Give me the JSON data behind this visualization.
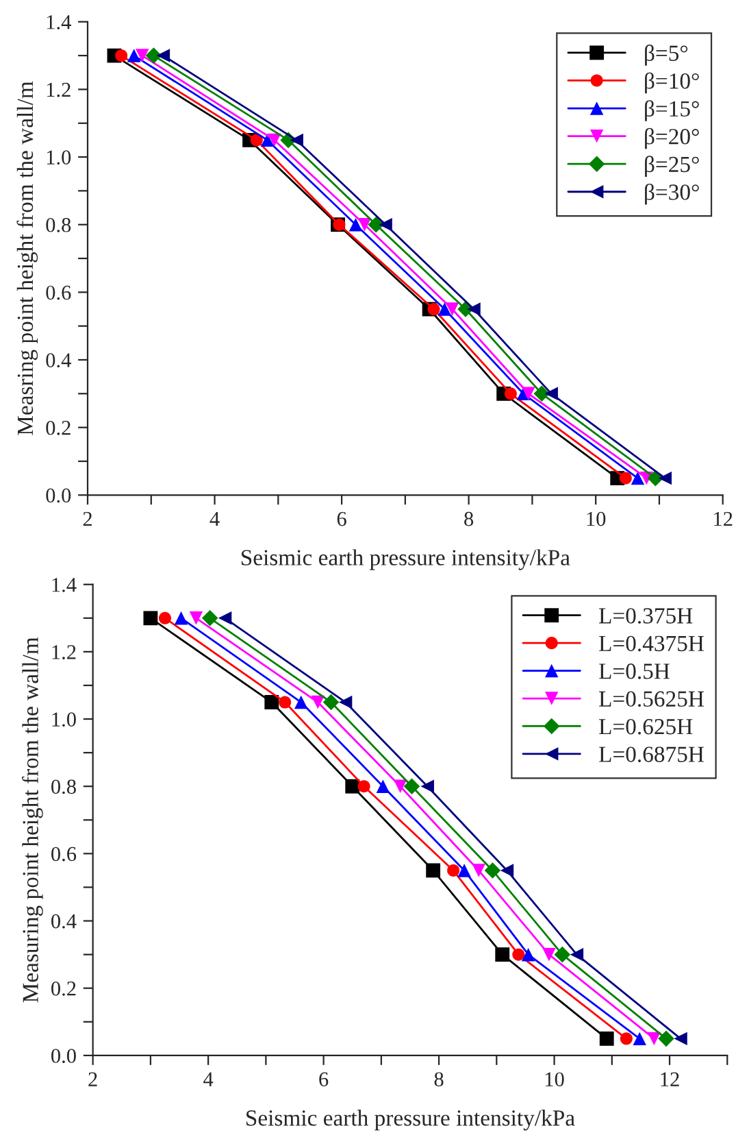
{
  "chart_data": [
    {
      "type": "line",
      "xlabel": "Seismic earth pressure intensity/kPa",
      "ylabel": "Measring point height from the wall/m",
      "legend": "top right",
      "grid": false,
      "xlim": [
        2,
        12
      ],
      "xticks": [
        2,
        {
          "value": 3,
          "label": null
        },
        4,
        {
          "value": 5,
          "label": null
        },
        6,
        {
          "value": 7,
          "label": null
        },
        8,
        {
          "value": 9,
          "label": null
        },
        10,
        {
          "value": 11,
          "label": null
        },
        12
      ],
      "ylim": [
        0,
        1.4
      ],
      "yticks": [
        "0.0",
        {
          "value": 0.1,
          "label": null
        },
        {
          "value": 0.2,
          "label": "0.2"
        },
        {
          "value": 0.3,
          "label": null
        },
        {
          "value": 0.4,
          "label": "0.4"
        },
        {
          "value": 0.5,
          "label": null
        },
        {
          "value": 0.6,
          "label": "0.6"
        },
        {
          "value": 0.7,
          "label": null
        },
        {
          "value": 0.8,
          "label": "0.8"
        },
        {
          "value": 0.9,
          "label": null
        },
        {
          "value": 1.0,
          "label": "1.0"
        },
        {
          "value": 1.1,
          "label": null
        },
        {
          "value": 1.2,
          "label": "1.2"
        },
        {
          "value": 1.3,
          "label": null
        },
        {
          "value": 1.4,
          "label": "1.4"
        }
      ],
      "series": [
        {
          "name": "β=5°",
          "color": "#000000",
          "marker": "square",
          "x": [
            2.42,
            4.55,
            5.94,
            7.38,
            8.55,
            10.34
          ],
          "values": [
            1.3,
            1.05,
            0.8,
            0.55,
            0.3,
            0.05
          ]
        },
        {
          "name": "β=10°",
          "color": "#ff0000",
          "marker": "circle",
          "x": [
            2.53,
            4.66,
            5.96,
            7.45,
            8.66,
            10.47
          ],
          "values": [
            1.3,
            1.05,
            0.8,
            0.55,
            0.3,
            0.05
          ]
        },
        {
          "name": "β=15°",
          "color": "#0000ff",
          "marker": "triangle",
          "x": [
            2.73,
            4.83,
            6.22,
            7.62,
            8.86,
            10.66
          ],
          "values": [
            1.3,
            1.05,
            0.8,
            0.55,
            0.3,
            0.05
          ]
        },
        {
          "name": "β=20°",
          "color": "#ff00ff",
          "marker": "triangle_down",
          "x": [
            2.86,
            4.94,
            6.36,
            7.74,
            8.94,
            10.8
          ],
          "values": [
            1.3,
            1.05,
            0.8,
            0.55,
            0.3,
            0.05
          ]
        },
        {
          "name": "β=25°",
          "color": "#008000",
          "marker": "diamond",
          "x": [
            3.04,
            5.16,
            6.54,
            7.95,
            9.15,
            10.94
          ],
          "values": [
            1.3,
            1.05,
            0.8,
            0.55,
            0.3,
            0.05
          ]
        },
        {
          "name": "β=30°",
          "color": "#000080",
          "marker": "triangle_left",
          "x": [
            3.19,
            5.29,
            6.69,
            8.08,
            9.3,
            11.09
          ],
          "values": [
            1.3,
            1.05,
            0.8,
            0.55,
            0.3,
            0.05
          ]
        }
      ]
    },
    {
      "type": "line",
      "xlabel": "Seismic earth pressure intensity/kPa",
      "ylabel": "Measuring point height from the wall/m",
      "legend": "top right",
      "grid": false,
      "xlim": [
        2,
        13
      ],
      "xticks": [
        2,
        {
          "value": 3,
          "label": null
        },
        4,
        {
          "value": 5,
          "label": null
        },
        6,
        {
          "value": 7,
          "label": null
        },
        8,
        {
          "value": 9,
          "label": null
        },
        10,
        {
          "value": 11,
          "label": null
        },
        12,
        {
          "value": 13,
          "label": null
        }
      ],
      "ylim": [
        0,
        1.4
      ],
      "yticks": [
        "0.0",
        {
          "value": 0.1,
          "label": null
        },
        {
          "value": 0.2,
          "label": "0.2"
        },
        {
          "value": 0.3,
          "label": null
        },
        {
          "value": 0.4,
          "label": "0.4"
        },
        {
          "value": 0.5,
          "label": null
        },
        {
          "value": 0.6,
          "label": "0.6"
        },
        {
          "value": 0.7,
          "label": null
        },
        {
          "value": 0.8,
          "label": "0.8"
        },
        {
          "value": 0.9,
          "label": null
        },
        {
          "value": 1.0,
          "label": "1.0"
        },
        {
          "value": 1.1,
          "label": null
        },
        {
          "value": 1.2,
          "label": "1.2"
        },
        {
          "value": 1.3,
          "label": null
        },
        {
          "value": 1.4,
          "label": "1.4"
        }
      ],
      "series": [
        {
          "name": "L=0.375H",
          "color": "#000000",
          "marker": "square",
          "x": [
            3.0,
            5.1,
            6.5,
            7.9,
            9.1,
            10.91
          ],
          "values": [
            1.3,
            1.05,
            0.8,
            0.55,
            0.3,
            0.05
          ]
        },
        {
          "name": "L=0.4375H",
          "color": "#ff0000",
          "marker": "circle",
          "x": [
            3.25,
            5.33,
            6.7,
            8.25,
            9.38,
            11.25
          ],
          "values": [
            1.3,
            1.05,
            0.8,
            0.55,
            0.3,
            0.05
          ]
        },
        {
          "name": "L=0.5H",
          "color": "#0000ff",
          "marker": "triangle",
          "x": [
            3.53,
            5.61,
            7.03,
            8.44,
            9.55,
            11.48
          ],
          "values": [
            1.3,
            1.05,
            0.8,
            0.55,
            0.3,
            0.05
          ]
        },
        {
          "name": "L=0.5625H",
          "color": "#ff00ff",
          "marker": "triangle_down",
          "x": [
            3.79,
            5.9,
            7.33,
            8.69,
            9.91,
            11.73
          ],
          "values": [
            1.3,
            1.05,
            0.8,
            0.55,
            0.3,
            0.05
          ]
        },
        {
          "name": "L=0.625H",
          "color": "#008000",
          "marker": "diamond",
          "x": [
            4.03,
            6.13,
            7.53,
            8.93,
            10.14,
            11.94
          ],
          "values": [
            1.3,
            1.05,
            0.8,
            0.55,
            0.3,
            0.05
          ]
        },
        {
          "name": "L=0.6875H",
          "color": "#000080",
          "marker": "triangle_left",
          "x": [
            4.29,
            6.38,
            7.8,
            9.18,
            10.39,
            12.19
          ],
          "values": [
            1.3,
            1.05,
            0.8,
            0.55,
            0.3,
            0.05
          ]
        }
      ]
    }
  ]
}
